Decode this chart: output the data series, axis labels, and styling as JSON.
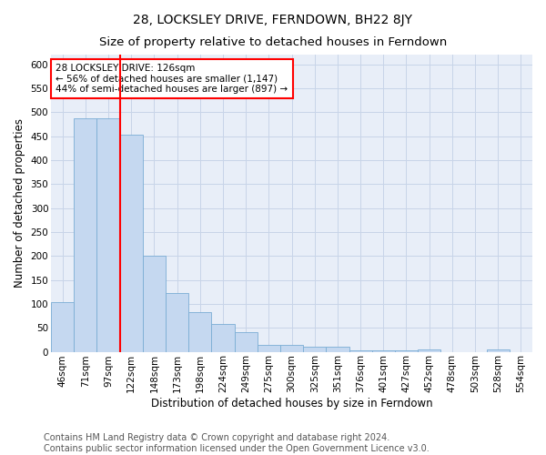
{
  "title": "28, LOCKSLEY DRIVE, FERNDOWN, BH22 8JY",
  "subtitle": "Size of property relative to detached houses in Ferndown",
  "xlabel": "Distribution of detached houses by size in Ferndown",
  "ylabel": "Number of detached properties",
  "categories": [
    "46sqm",
    "71sqm",
    "97sqm",
    "122sqm",
    "148sqm",
    "173sqm",
    "198sqm",
    "224sqm",
    "249sqm",
    "275sqm",
    "300sqm",
    "325sqm",
    "351sqm",
    "376sqm",
    "401sqm",
    "427sqm",
    "452sqm",
    "478sqm",
    "503sqm",
    "528sqm",
    "554sqm"
  ],
  "values": [
    103,
    487,
    487,
    452,
    200,
    122,
    82,
    58,
    40,
    15,
    15,
    10,
    10,
    2,
    2,
    2,
    5,
    0,
    0,
    5,
    0
  ],
  "bar_color": "#c5d8f0",
  "bar_edge_color": "#7aadd4",
  "vline_color": "red",
  "annotation_text": "28 LOCKSLEY DRIVE: 126sqm\n← 56% of detached houses are smaller (1,147)\n44% of semi-detached houses are larger (897) →",
  "annotation_box_color": "white",
  "annotation_box_edge": "red",
  "ylim": [
    0,
    620
  ],
  "yticks": [
    0,
    50,
    100,
    150,
    200,
    250,
    300,
    350,
    400,
    450,
    500,
    550,
    600
  ],
  "bg_color": "#e8eef8",
  "grid_color": "#c8d4e8",
  "footer": "Contains HM Land Registry data © Crown copyright and database right 2024.\nContains public sector information licensed under the Open Government Licence v3.0.",
  "title_fontsize": 10,
  "subtitle_fontsize": 9.5,
  "label_fontsize": 8.5,
  "tick_fontsize": 7.5,
  "footer_fontsize": 7
}
